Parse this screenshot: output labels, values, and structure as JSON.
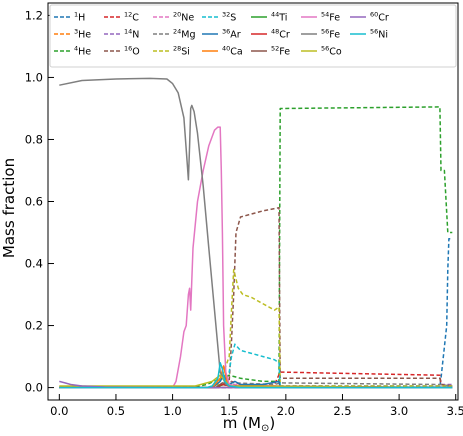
{
  "chart_data": {
    "type": "line",
    "xlabel": "m (M",
    "xlabel_sub": "⊙",
    "xlabel_close": ")",
    "ylabel": "Mass fraction",
    "xlim": [
      -0.1,
      3.52
    ],
    "ylim": [
      -0.04,
      1.24
    ],
    "xticks": [
      "0.0",
      "0.5",
      "1.0",
      "1.5",
      "2.0",
      "2.5",
      "3.0",
      "3.5"
    ],
    "xtick_values": [
      0.0,
      0.5,
      1.0,
      1.5,
      2.0,
      2.5,
      3.0,
      3.5
    ],
    "yticks": [
      "0.0",
      "0.2",
      "0.4",
      "0.6",
      "0.8",
      "1.0",
      "1.2"
    ],
    "ytick_values": [
      0.0,
      0.2,
      0.4,
      0.6,
      0.8,
      1.0,
      1.2
    ],
    "grid": false,
    "legend_position": "top",
    "series": [
      {
        "name": "1H",
        "sup": "1",
        "el": "H",
        "color": "#1f77b4",
        "dash": "dashed",
        "points": [
          [
            0,
            0
          ],
          [
            1.95,
            0
          ],
          [
            1.96,
            0.005
          ],
          [
            3.36,
            0.005
          ],
          [
            3.37,
            0.03
          ],
          [
            3.42,
            0.2
          ],
          [
            3.43,
            0.38
          ],
          [
            3.44,
            0.48
          ],
          [
            3.47,
            0.48
          ]
        ]
      },
      {
        "name": "3He",
        "sup": "3",
        "el": "He",
        "color": "#ff7f0e",
        "dash": "dashed",
        "points": [
          [
            0,
            0
          ],
          [
            3.47,
            0
          ]
        ]
      },
      {
        "name": "4He",
        "sup": "4",
        "el": "He",
        "color": "#2ca02c",
        "dash": "dashed",
        "points": [
          [
            0,
            0
          ],
          [
            1.0,
            0
          ],
          [
            1.2,
            0.002
          ],
          [
            1.3,
            0.01
          ],
          [
            1.4,
            0.025
          ],
          [
            1.45,
            0.03
          ],
          [
            1.5,
            0.04
          ],
          [
            1.6,
            0.03
          ],
          [
            1.8,
            0.02
          ],
          [
            1.94,
            0.02
          ],
          [
            1.95,
            0.9
          ],
          [
            3.36,
            0.905
          ],
          [
            3.37,
            0.7
          ],
          [
            3.4,
            0.7
          ],
          [
            3.43,
            0.5
          ],
          [
            3.47,
            0.5
          ]
        ]
      },
      {
        "name": "12C",
        "sup": "12",
        "el": "C",
        "color": "#d62728",
        "dash": "dashed",
        "points": [
          [
            0,
            0
          ],
          [
            1.5,
            0
          ],
          [
            1.52,
            0.02
          ],
          [
            1.6,
            0.01
          ],
          [
            1.9,
            0.01
          ],
          [
            1.95,
            0.05
          ],
          [
            3.36,
            0.04
          ],
          [
            3.37,
            0.01
          ],
          [
            3.47,
            0.005
          ]
        ]
      },
      {
        "name": "14N",
        "sup": "14",
        "el": "N",
        "color": "#9467bd",
        "dash": "dashed",
        "points": [
          [
            0,
            0
          ],
          [
            1.95,
            0
          ],
          [
            1.96,
            0.002
          ],
          [
            3.35,
            0.002
          ],
          [
            3.36,
            0.01
          ],
          [
            3.47,
            0.01
          ]
        ]
      },
      {
        "name": "16O",
        "sup": "16",
        "el": "O",
        "color": "#8c564b",
        "dash": "dashed",
        "points": [
          [
            0,
            0
          ],
          [
            1.48,
            0
          ],
          [
            1.5,
            0.02
          ],
          [
            1.52,
            0.15
          ],
          [
            1.54,
            0.3
          ],
          [
            1.56,
            0.5
          ],
          [
            1.6,
            0.55
          ],
          [
            1.7,
            0.56
          ],
          [
            1.8,
            0.57
          ],
          [
            1.94,
            0.58
          ],
          [
            1.95,
            0.03
          ],
          [
            3.36,
            0.03
          ],
          [
            3.37,
            0.01
          ],
          [
            3.47,
            0.005
          ]
        ]
      },
      {
        "name": "20Ne",
        "sup": "20",
        "el": "Ne",
        "color": "#e377c2",
        "dash": "dashed",
        "points": [
          [
            0,
            0
          ],
          [
            1.5,
            0
          ],
          [
            1.52,
            0.01
          ],
          [
            1.6,
            0.01
          ],
          [
            1.95,
            0.005
          ],
          [
            1.96,
            0
          ],
          [
            3.47,
            0
          ]
        ]
      },
      {
        "name": "24Mg",
        "sup": "24",
        "el": "Mg",
        "color": "#7f7f7f",
        "dash": "dashed",
        "points": [
          [
            0,
            0
          ],
          [
            1.48,
            0
          ],
          [
            1.5,
            0.02
          ],
          [
            1.55,
            0.015
          ],
          [
            1.9,
            0.01
          ],
          [
            1.95,
            0.015
          ],
          [
            3.35,
            0.01
          ],
          [
            3.47,
            0.005
          ]
        ]
      },
      {
        "name": "28Si",
        "sup": "28",
        "el": "Si",
        "color": "#bcbd22",
        "dash": "dashed",
        "points": [
          [
            0,
            0
          ],
          [
            1.3,
            0
          ],
          [
            1.4,
            0.01
          ],
          [
            1.45,
            0.05
          ],
          [
            1.5,
            0.1
          ],
          [
            1.52,
            0.25
          ],
          [
            1.54,
            0.38
          ],
          [
            1.58,
            0.32
          ],
          [
            1.62,
            0.3
          ],
          [
            1.7,
            0.29
          ],
          [
            1.8,
            0.27
          ],
          [
            1.9,
            0.25
          ],
          [
            1.94,
            0.26
          ],
          [
            1.95,
            0.005
          ],
          [
            3.47,
            0.005
          ]
        ]
      },
      {
        "name": "32S",
        "sup": "32",
        "el": "S",
        "color": "#17becf",
        "dash": "dashed",
        "points": [
          [
            0,
            0
          ],
          [
            1.35,
            0
          ],
          [
            1.42,
            0.03
          ],
          [
            1.47,
            0.04
          ],
          [
            1.5,
            0.05
          ],
          [
            1.52,
            0.1
          ],
          [
            1.55,
            0.14
          ],
          [
            1.6,
            0.12
          ],
          [
            1.7,
            0.11
          ],
          [
            1.8,
            0.1
          ],
          [
            1.9,
            0.09
          ],
          [
            1.94,
            0.08
          ],
          [
            1.95,
            0.002
          ],
          [
            3.47,
            0.002
          ]
        ]
      },
      {
        "name": "36Ar",
        "sup": "36",
        "el": "Ar",
        "color": "#1f77b4",
        "dash": "solid",
        "points": [
          [
            0,
            0
          ],
          [
            1.35,
            0
          ],
          [
            1.42,
            0.02
          ],
          [
            1.45,
            0.04
          ],
          [
            1.48,
            0.02
          ],
          [
            1.5,
            0.01
          ],
          [
            1.55,
            0.02
          ],
          [
            1.6,
            0.01
          ],
          [
            1.8,
            0.01
          ],
          [
            1.94,
            0.02
          ],
          [
            1.95,
            0
          ],
          [
            3.47,
            0
          ]
        ]
      },
      {
        "name": "40Ca",
        "sup": "40",
        "el": "Ca",
        "color": "#ff7f0e",
        "dash": "solid",
        "points": [
          [
            0,
            0
          ],
          [
            1.35,
            0
          ],
          [
            1.42,
            0.03
          ],
          [
            1.45,
            0.07
          ],
          [
            1.48,
            0.02
          ],
          [
            1.5,
            0.005
          ],
          [
            1.6,
            0.005
          ],
          [
            1.95,
            0.005
          ],
          [
            1.96,
            0
          ],
          [
            3.47,
            0
          ]
        ]
      },
      {
        "name": "44Ti",
        "sup": "44",
        "el": "Ti",
        "color": "#2ca02c",
        "dash": "solid",
        "points": [
          [
            0,
            0
          ],
          [
            1.38,
            0
          ],
          [
            1.42,
            0.005
          ],
          [
            1.45,
            0.01
          ],
          [
            1.5,
            0.005
          ],
          [
            3.47,
            0
          ]
        ]
      },
      {
        "name": "48Cr",
        "sup": "48",
        "el": "Cr",
        "color": "#d62728",
        "dash": "solid",
        "points": [
          [
            0,
            0
          ],
          [
            1.38,
            0
          ],
          [
            1.44,
            0.01
          ],
          [
            1.5,
            0.005
          ],
          [
            3.47,
            0
          ]
        ]
      },
      {
        "name": "52Fe",
        "sup": "52",
        "el": "Fe",
        "color": "#8c564b",
        "dash": "solid",
        "points": [
          [
            0,
            0
          ],
          [
            1.38,
            0
          ],
          [
            1.44,
            0.015
          ],
          [
            1.5,
            0.01
          ],
          [
            1.6,
            0.002
          ],
          [
            3.47,
            0
          ]
        ]
      },
      {
        "name": "54Fe",
        "sup": "54",
        "el": "Fe",
        "color": "#e377c2",
        "dash": "solid",
        "points": [
          [
            0,
            0
          ],
          [
            1.0,
            0
          ],
          [
            1.03,
            0.02
          ],
          [
            1.07,
            0.1
          ],
          [
            1.1,
            0.18
          ],
          [
            1.12,
            0.2
          ],
          [
            1.14,
            0.3
          ],
          [
            1.15,
            0.32
          ],
          [
            1.16,
            0.25
          ],
          [
            1.18,
            0.45
          ],
          [
            1.22,
            0.6
          ],
          [
            1.27,
            0.7
          ],
          [
            1.32,
            0.78
          ],
          [
            1.37,
            0.83
          ],
          [
            1.4,
            0.84
          ],
          [
            1.42,
            0.84
          ],
          [
            1.43,
            0.7
          ],
          [
            1.44,
            0.5
          ],
          [
            1.45,
            0.2
          ],
          [
            1.47,
            0.05
          ],
          [
            1.5,
            0.01
          ],
          [
            1.6,
            0
          ],
          [
            3.47,
            0
          ]
        ]
      },
      {
        "name": "56Fe",
        "sup": "56",
        "el": "Fe",
        "color": "#7f7f7f",
        "dash": "solid",
        "points": [
          [
            0,
            0.975
          ],
          [
            0.2,
            0.99
          ],
          [
            0.5,
            0.995
          ],
          [
            0.8,
            0.997
          ],
          [
            0.95,
            0.995
          ],
          [
            1.0,
            0.98
          ],
          [
            1.05,
            0.95
          ],
          [
            1.1,
            0.87
          ],
          [
            1.13,
            0.72
          ],
          [
            1.14,
            0.67
          ],
          [
            1.15,
            0.78
          ],
          [
            1.16,
            0.9
          ],
          [
            1.17,
            0.91
          ],
          [
            1.19,
            0.89
          ],
          [
            1.22,
            0.82
          ],
          [
            1.27,
            0.65
          ],
          [
            1.32,
            0.45
          ],
          [
            1.37,
            0.25
          ],
          [
            1.42,
            0.05
          ],
          [
            1.47,
            0.01
          ],
          [
            1.55,
            0
          ],
          [
            3.47,
            0
          ]
        ]
      },
      {
        "name": "56Co",
        "sup": "56",
        "el": "Co",
        "color": "#bcbd22",
        "dash": "solid",
        "points": [
          [
            0,
            0.005
          ],
          [
            1.2,
            0.005
          ],
          [
            1.35,
            0.02
          ],
          [
            1.42,
            0.04
          ],
          [
            1.47,
            0.02
          ],
          [
            1.5,
            0.005
          ],
          [
            3.47,
            0
          ]
        ]
      },
      {
        "name": "60Cr",
        "sup": "60",
        "el": "Cr",
        "color": "#9467bd",
        "dash": "solid",
        "points": [
          [
            0,
            0.02
          ],
          [
            0.05,
            0.015
          ],
          [
            0.1,
            0.01
          ],
          [
            0.2,
            0.005
          ],
          [
            0.4,
            0.002
          ],
          [
            1.0,
            0
          ],
          [
            3.47,
            0
          ]
        ]
      },
      {
        "name": "56Ni",
        "sup": "56",
        "el": "Ni",
        "color": "#17becf",
        "dash": "solid",
        "points": [
          [
            0,
            0
          ],
          [
            1.3,
            0
          ],
          [
            1.35,
            0.005
          ],
          [
            1.4,
            0.03
          ],
          [
            1.42,
            0.08
          ],
          [
            1.44,
            0.06
          ],
          [
            1.46,
            0.02
          ],
          [
            1.5,
            0.005
          ],
          [
            1.6,
            0
          ],
          [
            3.47,
            0
          ]
        ]
      }
    ]
  }
}
